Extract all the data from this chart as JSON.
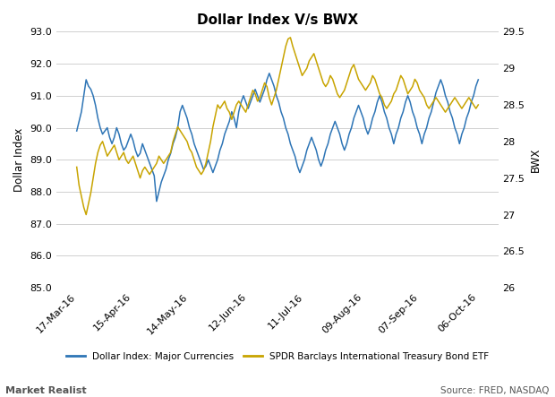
{
  "title": "Dollar Index V/s BWX",
  "ylabel_left": "Dollar Index",
  "ylabel_right": "BWX",
  "source_text": "Source: FRED, NASDAQ",
  "watermark": "Market Realist",
  "legend1": "Dollar Index: Major Currencies",
  "legend2": "SPDR Barclays International Treasury Bond ETF",
  "color_dollar": "#2e75b6",
  "color_bwx": "#c8a400",
  "ylim_left": [
    85.0,
    93.0
  ],
  "ylim_right": [
    26.0,
    29.5
  ],
  "yticks_left": [
    85.0,
    86.0,
    87.0,
    88.0,
    89.0,
    90.0,
    91.0,
    92.0,
    93.0
  ],
  "yticks_right": [
    26.0,
    26.5,
    27.0,
    27.5,
    28.0,
    28.5,
    29.0,
    29.5
  ],
  "xtick_labels": [
    "17-Mar-16",
    "15-Apr-16",
    "14-May-16",
    "12-Jun-16",
    "11-Jul-16",
    "09-Aug-16",
    "07-Sep-16",
    "06-Oct-16"
  ],
  "dollar_index": [
    89.9,
    90.2,
    90.5,
    91.0,
    91.5,
    91.3,
    91.2,
    91.0,
    90.7,
    90.3,
    90.0,
    89.8,
    89.9,
    90.0,
    89.7,
    89.5,
    89.7,
    90.0,
    89.8,
    89.5,
    89.3,
    89.4,
    89.6,
    89.8,
    89.6,
    89.3,
    89.1,
    89.2,
    89.5,
    89.3,
    89.1,
    88.9,
    88.7,
    88.5,
    87.7,
    88.0,
    88.3,
    88.5,
    88.7,
    89.0,
    89.2,
    89.5,
    89.7,
    90.0,
    90.5,
    90.7,
    90.5,
    90.3,
    90.0,
    89.8,
    89.5,
    89.3,
    89.1,
    88.9,
    88.7,
    88.8,
    89.0,
    88.8,
    88.6,
    88.8,
    89.0,
    89.3,
    89.5,
    89.8,
    90.0,
    90.2,
    90.5,
    90.3,
    90.0,
    90.5,
    90.8,
    91.0,
    90.8,
    90.6,
    90.8,
    91.0,
    91.2,
    91.0,
    90.8,
    91.0,
    91.2,
    91.5,
    91.7,
    91.5,
    91.3,
    91.0,
    90.8,
    90.5,
    90.3,
    90.0,
    89.8,
    89.5,
    89.3,
    89.1,
    88.8,
    88.6,
    88.8,
    89.0,
    89.3,
    89.5,
    89.7,
    89.5,
    89.3,
    89.0,
    88.8,
    89.0,
    89.3,
    89.5,
    89.8,
    90.0,
    90.2,
    90.0,
    89.8,
    89.5,
    89.3,
    89.5,
    89.8,
    90.0,
    90.3,
    90.5,
    90.7,
    90.5,
    90.3,
    90.0,
    89.8,
    90.0,
    90.3,
    90.5,
    90.8,
    91.0,
    90.8,
    90.5,
    90.3,
    90.0,
    89.8,
    89.5,
    89.8,
    90.0,
    90.3,
    90.5,
    90.8,
    91.0,
    90.8,
    90.5,
    90.3,
    90.0,
    89.8,
    89.5,
    89.8,
    90.0,
    90.3,
    90.5,
    90.8,
    91.1,
    91.3,
    91.5,
    91.3,
    91.0,
    90.8,
    90.5,
    90.3,
    90.0,
    89.8,
    89.5,
    89.8,
    90.0,
    90.3,
    90.5,
    90.8,
    91.0,
    91.3,
    91.5
  ],
  "bwx": [
    27.65,
    27.4,
    27.25,
    27.1,
    27.0,
    27.15,
    27.3,
    27.5,
    27.7,
    27.85,
    27.95,
    28.0,
    27.9,
    27.8,
    27.85,
    27.9,
    27.95,
    27.85,
    27.75,
    27.8,
    27.85,
    27.75,
    27.7,
    27.75,
    27.8,
    27.7,
    27.6,
    27.5,
    27.6,
    27.65,
    27.6,
    27.55,
    27.6,
    27.65,
    27.7,
    27.8,
    27.75,
    27.7,
    27.75,
    27.8,
    27.85,
    28.0,
    28.1,
    28.2,
    28.15,
    28.1,
    28.05,
    28.0,
    27.9,
    27.85,
    27.75,
    27.65,
    27.6,
    27.55,
    27.6,
    27.7,
    27.85,
    28.0,
    28.2,
    28.35,
    28.5,
    28.45,
    28.5,
    28.55,
    28.45,
    28.4,
    28.3,
    28.4,
    28.5,
    28.55,
    28.5,
    28.45,
    28.4,
    28.5,
    28.6,
    28.7,
    28.65,
    28.55,
    28.6,
    28.7,
    28.8,
    28.75,
    28.6,
    28.5,
    28.6,
    28.7,
    28.85,
    29.0,
    29.15,
    29.3,
    29.4,
    29.42,
    29.3,
    29.2,
    29.1,
    29.0,
    28.9,
    28.95,
    29.0,
    29.1,
    29.15,
    29.2,
    29.1,
    29.0,
    28.9,
    28.8,
    28.75,
    28.8,
    28.9,
    28.85,
    28.75,
    28.65,
    28.6,
    28.65,
    28.7,
    28.8,
    28.9,
    29.0,
    29.05,
    28.95,
    28.85,
    28.8,
    28.75,
    28.7,
    28.75,
    28.8,
    28.9,
    28.85,
    28.75,
    28.65,
    28.6,
    28.5,
    28.45,
    28.5,
    28.55,
    28.65,
    28.7,
    28.8,
    28.9,
    28.85,
    28.75,
    28.65,
    28.7,
    28.75,
    28.85,
    28.8,
    28.7,
    28.65,
    28.6,
    28.5,
    28.45,
    28.5,
    28.55,
    28.6,
    28.55,
    28.5,
    28.45,
    28.4,
    28.45,
    28.5,
    28.55,
    28.6,
    28.55,
    28.5,
    28.45,
    28.5,
    28.55,
    28.6,
    28.55,
    28.5,
    28.45,
    28.5
  ],
  "background_color": "#ffffff",
  "grid_color": "#d0d0d0"
}
